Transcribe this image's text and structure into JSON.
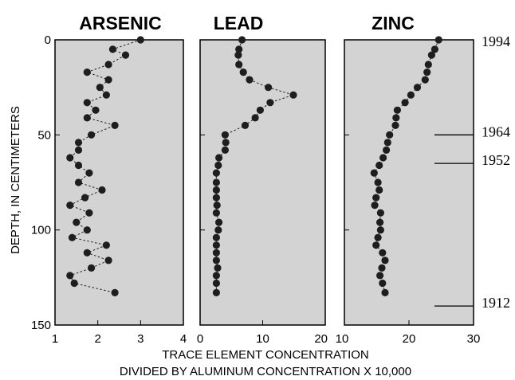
{
  "chart_data": {
    "type": "scatter",
    "ylabel": "DEPTH, IN CENTIMETERS",
    "xlabel_line1": "TRACE ELEMENT CONCENTRATION",
    "xlabel_line2": "DIVIDED BY ALUMINUM CONCENTRATION X 10,000",
    "ylim": [
      0,
      150
    ],
    "yticks": [
      0,
      50,
      100,
      150
    ],
    "grid": false,
    "panels": [
      {
        "title": "ARSENIC",
        "xlim": [
          1,
          4
        ],
        "xticks": [
          1,
          2,
          3,
          4
        ],
        "depth": [
          0,
          5,
          8,
          13,
          17,
          21,
          25,
          29,
          33,
          37,
          41,
          45,
          50,
          54,
          58,
          62,
          66,
          70,
          75,
          79,
          83,
          87,
          91,
          96,
          100,
          104,
          108,
          112,
          116,
          120,
          124,
          128,
          133
        ],
        "values": [
          3.0,
          2.35,
          2.65,
          2.25,
          1.75,
          2.25,
          2.05,
          2.2,
          1.75,
          1.95,
          1.75,
          2.4,
          1.85,
          1.55,
          1.55,
          1.35,
          1.55,
          1.8,
          1.55,
          2.1,
          1.7,
          1.35,
          1.8,
          1.5,
          1.75,
          1.4,
          2.2,
          1.75,
          2.25,
          1.85,
          1.35,
          1.45,
          2.4
        ]
      },
      {
        "title": "LEAD",
        "xlim": [
          0,
          20
        ],
        "xticks": [
          0,
          10,
          20
        ],
        "depth": [
          0,
          5,
          8,
          13,
          17,
          21,
          25,
          29,
          33,
          37,
          41,
          45,
          50,
          54,
          58,
          62,
          66,
          70,
          75,
          79,
          83,
          87,
          91,
          96,
          100,
          104,
          108,
          112,
          116,
          120,
          124,
          128,
          133
        ],
        "values": [
          6.7,
          6.2,
          6.1,
          6.2,
          6.9,
          7.9,
          10.9,
          14.9,
          11.2,
          9.6,
          8.8,
          7.2,
          4.0,
          4.1,
          4.0,
          3.0,
          2.9,
          2.6,
          2.6,
          2.6,
          2.6,
          2.7,
          2.6,
          3.0,
          2.9,
          2.6,
          2.6,
          2.6,
          2.6,
          2.8,
          2.6,
          2.6,
          2.6
        ]
      },
      {
        "title": "ZINC",
        "xlim": [
          10,
          30
        ],
        "xticks": [
          10,
          20,
          30
        ],
        "depth": [
          0,
          5,
          8,
          13,
          17,
          21,
          25,
          29,
          33,
          37,
          41,
          45,
          50,
          54,
          58,
          62,
          66,
          70,
          75,
          79,
          83,
          87,
          91,
          96,
          100,
          104,
          108,
          112,
          116,
          120,
          124,
          128,
          133
        ],
        "values": [
          24.6,
          24.0,
          23.5,
          23.0,
          22.8,
          22.5,
          21.3,
          20.3,
          19.4,
          18.2,
          18.0,
          17.9,
          17.0,
          16.7,
          16.5,
          16.0,
          15.4,
          14.6,
          15.2,
          15.4,
          14.9,
          14.7,
          15.6,
          15.5,
          15.6,
          15.2,
          14.9,
          15.9,
          16.3,
          15.8,
          15.5,
          15.9,
          16.3
        ]
      }
    ],
    "date_markers": [
      {
        "year": "1994",
        "depth": 0
      },
      {
        "year": "1964",
        "depth": 50
      },
      {
        "year": "1952",
        "depth": 65
      },
      {
        "year": "1912",
        "depth": 140
      }
    ]
  },
  "colors": {
    "panel_fill": "#d3d3d3",
    "marker": "#1e1e1e",
    "axis": "#000000"
  }
}
